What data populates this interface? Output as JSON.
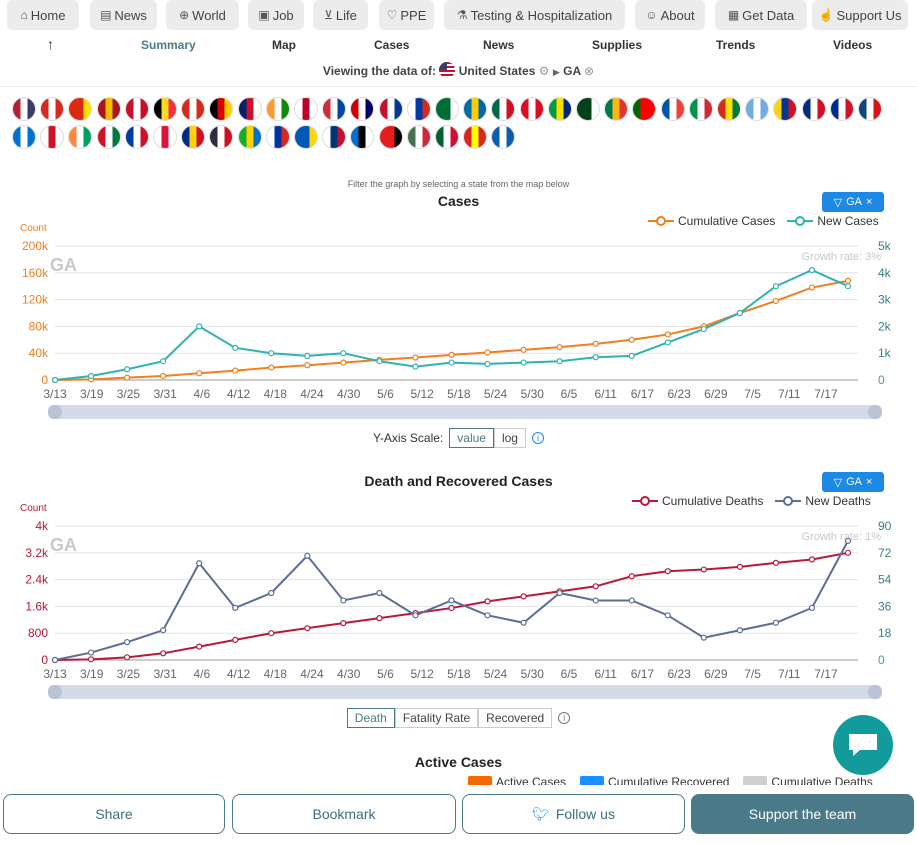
{
  "top_nav": [
    {
      "label": "Home",
      "icon": "home-icon",
      "glyph": "⌂"
    },
    {
      "label": "News",
      "icon": "news-icon",
      "glyph": "▤"
    },
    {
      "label": "World",
      "icon": "globe-icon",
      "glyph": "⊕"
    },
    {
      "label": "Job",
      "icon": "job-icon",
      "glyph": "▣"
    },
    {
      "label": "Life",
      "icon": "cart-icon",
      "glyph": "⊻"
    },
    {
      "label": "PPE",
      "icon": "heart-icon",
      "glyph": "♡"
    },
    {
      "label": "Testing & Hospitalization",
      "icon": "flask-icon",
      "glyph": "⚗"
    },
    {
      "label": "About",
      "icon": "people-icon",
      "glyph": "☺"
    },
    {
      "label": "Get Data",
      "icon": "table-icon",
      "glyph": "▦"
    },
    {
      "label": "Support Us",
      "icon": "thumbs-up-icon",
      "glyph": "☝"
    }
  ],
  "sub_nav": {
    "back_arrow": "↑",
    "items": [
      "Summary",
      "Map",
      "Cases",
      "News",
      "Supplies",
      "Trends",
      "Videos"
    ],
    "active": "Summary"
  },
  "viewing": {
    "prefix": "Viewing the data of:",
    "country": "United States",
    "state": "GA"
  },
  "flags": [
    [
      "#b22234",
      "#fff",
      "#3c3b6e"
    ],
    [
      "#d52b1e",
      "#fff",
      "#d52b1e"
    ],
    [
      "#de2910",
      "#de2910",
      "#ffde00"
    ],
    [
      "#aa151b",
      "#f1bf00",
      "#aa151b"
    ],
    [
      "#c8102e",
      "#fff",
      "#c8102e"
    ],
    [
      "#000",
      "#fdda24",
      "#ef3340"
    ],
    [
      "#d52b1e",
      "#fff",
      "#d52b1e"
    ],
    [
      "#000",
      "#dd0000",
      "#ffce00"
    ],
    [
      "#012169",
      "#c8102e",
      "#fff"
    ],
    [
      "#ff9933",
      "#fff",
      "#138808"
    ],
    [
      "#fff",
      "#bc002d",
      "#fff"
    ],
    [
      "#cd2e3a",
      "#fff",
      "#0047a0"
    ],
    [
      "#cc0001",
      "#fff",
      "#010066"
    ],
    [
      "#c8102e",
      "#fff",
      "#003893"
    ],
    [
      "#fff",
      "#0039a6",
      "#d52b1e"
    ],
    [
      "#006c35",
      "#006c35",
      "#fff"
    ],
    [
      "#006aa7",
      "#fecc00",
      "#006aa7"
    ],
    [
      "#006847",
      "#fff",
      "#ce1126"
    ],
    [
      "#d91023",
      "#fff",
      "#d91023"
    ],
    [
      "#009c3b",
      "#ffdf00",
      "#002776"
    ],
    [
      "#01411c",
      "#01411c",
      "#fff"
    ],
    [
      "#007a4d",
      "#ffb612",
      "#de3831"
    ],
    [
      "#006600",
      "#ff0000",
      "#ff0000"
    ],
    [
      "#0055a4",
      "#fff",
      "#ef4135"
    ],
    [
      "#009246",
      "#fff",
      "#ce2b37"
    ],
    [
      "#d52b1e",
      "#f9e300",
      "#007934"
    ],
    [
      "#74acdf",
      "#fff",
      "#74acdf"
    ],
    [
      "#fcd116",
      "#003893",
      "#ce1126"
    ],
    [
      "#002b7f",
      "#fff",
      "#ce1126"
    ],
    [
      "#002a8f",
      "#fff",
      "#cf142b"
    ],
    [
      "#11457e",
      "#fff",
      "#d7141a"
    ],
    [
      "#0073cf",
      "#fff",
      "#0073cf"
    ],
    [
      "#fff",
      "#ce1126",
      "#fff"
    ],
    [
      "#ff883e",
      "#fff",
      "#009e60"
    ],
    [
      "#ce1126",
      "#fff",
      "#007a3d"
    ],
    [
      "#0038a8",
      "#fff",
      "#ce1126"
    ],
    [
      "#fff",
      "#dc143c",
      "#fff"
    ],
    [
      "#002b7f",
      "#fcd116",
      "#ce1126"
    ],
    [
      "#2d2a4a",
      "#fff",
      "#ce1126"
    ],
    [
      "#12ad2b",
      "#ffd100",
      "#0072c6"
    ],
    [
      "#fff",
      "#0033a0",
      "#da291c"
    ],
    [
      "#0057b7",
      "#0057b7",
      "#ffd700"
    ],
    [
      "#fff",
      "#003478",
      "#c60c30"
    ],
    [
      "#0072ce",
      "#000",
      "#fff"
    ],
    [
      "#e41e20",
      "#e41e20",
      "#000"
    ],
    [
      "#477050",
      "#fff",
      "#ce2939"
    ],
    [
      "#006233",
      "#fff",
      "#d21034"
    ],
    [
      "#da251d",
      "#ffff00",
      "#da251d"
    ],
    [
      "#0d5eaf",
      "#fff",
      "#0d5eaf"
    ]
  ],
  "cases_chart": {
    "filter_note": "Filter the graph by selecting a state from the map below",
    "title": "Cases",
    "filter_badge": "GA",
    "axis_name_left": "Count",
    "watermark": "GA",
    "growth_rate": "Growth rate: 3%",
    "legend": [
      {
        "name": "Cumulative Cases",
        "color": "#f07f1d"
      },
      {
        "name": "New Cases",
        "color": "#2fb3b0"
      }
    ],
    "left_ticks": [
      "0",
      "40k",
      "80k",
      "120k",
      "160k",
      "200k"
    ],
    "right_ticks": [
      "0",
      "1k",
      "2k",
      "3k",
      "4k",
      "5k"
    ],
    "x_ticks": [
      "3/13",
      "3/19",
      "3/25",
      "3/31",
      "4/6",
      "4/12",
      "4/18",
      "4/24",
      "4/30",
      "5/6",
      "5/12",
      "5/18",
      "5/24",
      "5/30",
      "6/5",
      "6/11",
      "6/17",
      "6/23",
      "6/29",
      "7/5",
      "7/11",
      "7/17"
    ],
    "scale_label": "Y-Axis Scale:",
    "scale_options": [
      "value",
      "log"
    ],
    "scale_active": "value"
  },
  "death_chart": {
    "title": "Death and Recovered Cases",
    "filter_badge": "GA",
    "axis_name_left": "Count",
    "watermark": "GA",
    "growth_rate": "Growth rate: 1%",
    "legend": [
      {
        "name": "Cumulative Deaths",
        "color": "#b8193a"
      },
      {
        "name": "New Deaths",
        "color": "#5c6e94"
      }
    ],
    "left_ticks": [
      "0",
      "800",
      "1.6k",
      "2.4k",
      "3.2k",
      "4k"
    ],
    "right_ticks": [
      "0",
      "18",
      "36",
      "54",
      "72",
      "90"
    ],
    "x_ticks": [
      "3/13",
      "3/19",
      "3/25",
      "3/31",
      "4/6",
      "4/12",
      "4/18",
      "4/24",
      "4/30",
      "5/6",
      "5/12",
      "5/18",
      "5/24",
      "5/30",
      "6/5",
      "6/11",
      "6/17",
      "6/23",
      "6/29",
      "7/5",
      "7/11",
      "7/17"
    ],
    "tabs": [
      "Death",
      "Fatality Rate",
      "Recovered"
    ],
    "tab_active": "Death"
  },
  "active_cases": {
    "title": "Active Cases",
    "legend": [
      {
        "name": "Active Cases",
        "color": "#f56a00"
      },
      {
        "name": "Cumulative Recovered",
        "color": "#1890ff"
      },
      {
        "name": "Cumulative Deaths",
        "color": "#d0d0d0"
      }
    ]
  },
  "bottom_bar": {
    "share": "Share",
    "bookmark": "Bookmark",
    "follow": "Follow us",
    "support": "Support the team"
  },
  "chart_data": [
    {
      "type": "line",
      "title": "Cases",
      "x": [
        "3/13",
        "3/19",
        "3/25",
        "3/31",
        "4/6",
        "4/12",
        "4/18",
        "4/24",
        "4/30",
        "5/6",
        "5/12",
        "5/18",
        "5/24",
        "5/30",
        "6/5",
        "6/11",
        "6/17",
        "6/23",
        "6/29",
        "7/5",
        "7/11",
        "7/17",
        "7/20"
      ],
      "series": [
        {
          "name": "Cumulative Cases",
          "axis": "left",
          "values": [
            0,
            1000,
            3500,
            6000,
            10000,
            14000,
            18500,
            22000,
            26000,
            30000,
            33500,
            37500,
            41000,
            45000,
            49000,
            54000,
            60000,
            68000,
            80000,
            100000,
            118000,
            138000,
            148000
          ]
        },
        {
          "name": "New Cases",
          "axis": "right",
          "values": [
            0,
            150,
            400,
            700,
            2000,
            1200,
            1000,
            900,
            1000,
            700,
            500,
            650,
            600,
            650,
            700,
            850,
            900,
            1400,
            1900,
            2500,
            3500,
            4100,
            3500
          ]
        }
      ],
      "ylim_left": [
        0,
        200000
      ],
      "ylim_right": [
        0,
        5000
      ]
    },
    {
      "type": "line",
      "title": "Death and Recovered Cases",
      "x": [
        "3/13",
        "3/19",
        "3/25",
        "3/31",
        "4/6",
        "4/12",
        "4/18",
        "4/24",
        "4/30",
        "5/6",
        "5/12",
        "5/18",
        "5/24",
        "5/30",
        "6/5",
        "6/11",
        "6/17",
        "6/23",
        "6/29",
        "7/5",
        "7/11",
        "7/17",
        "7/20"
      ],
      "series": [
        {
          "name": "Cumulative Deaths",
          "axis": "left",
          "values": [
            0,
            20,
            80,
            200,
            400,
            600,
            800,
            950,
            1100,
            1250,
            1400,
            1550,
            1750,
            1900,
            2050,
            2200,
            2500,
            2650,
            2700,
            2780,
            2900,
            3000,
            3200
          ]
        },
        {
          "name": "New Deaths",
          "axis": "right",
          "values": [
            0,
            5,
            12,
            20,
            65,
            35,
            45,
            70,
            40,
            45,
            30,
            40,
            30,
            25,
            45,
            40,
            40,
            30,
            15,
            20,
            25,
            35,
            80
          ]
        }
      ],
      "ylim_left": [
        0,
        4000
      ],
      "ylim_right": [
        0,
        90
      ]
    }
  ]
}
